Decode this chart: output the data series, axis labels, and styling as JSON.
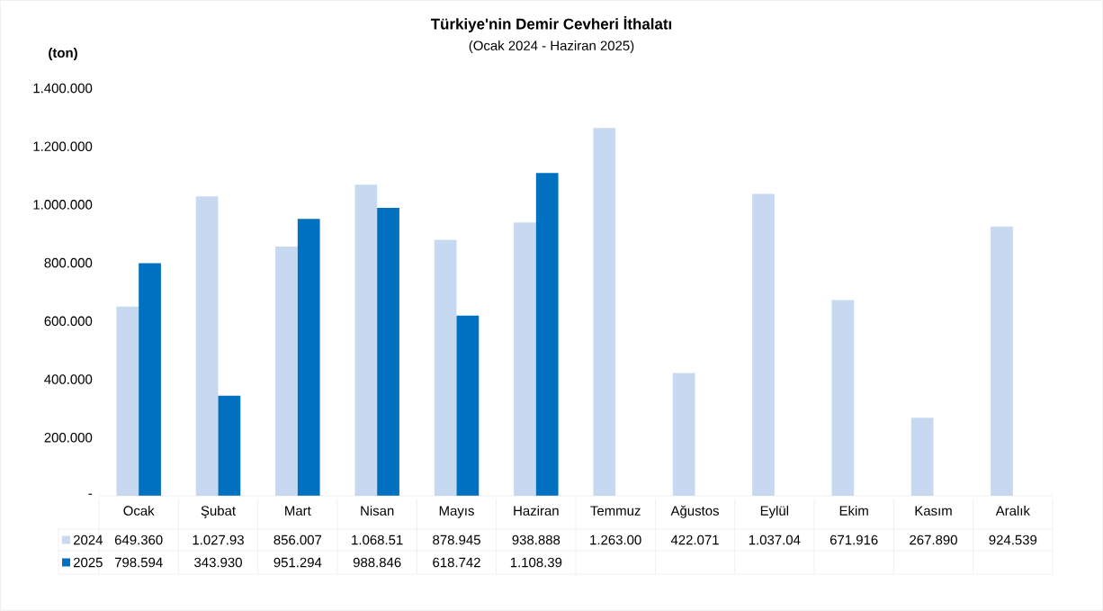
{
  "chart_data": {
    "type": "bar",
    "title": "Türkiye'nin Demir Cevheri İthalatı",
    "subtitle": "(Ocak 2024 - Haziran 2025)",
    "ylabel": "(ton)",
    "categories": [
      "Ocak",
      "Şubat",
      "Mart",
      "Nisan",
      "Mayıs",
      "Haziran",
      "Temmuz",
      "Ağustos",
      "Eylül",
      "Ekim",
      "Kasım",
      "Aralık"
    ],
    "series": [
      {
        "name": "2024",
        "color": "#c6d9f1",
        "values": [
          649360,
          1027930,
          856007,
          1068510,
          878945,
          938888,
          1263000,
          422071,
          1037040,
          671916,
          267890,
          924539
        ],
        "value_labels": [
          "649.360",
          "1.027.93",
          "856.007",
          "1.068.51",
          "878.945",
          "938.888",
          "1.263.00",
          "422.071",
          "1.037.04",
          "671.916",
          "267.890",
          "924.539"
        ]
      },
      {
        "name": "2025",
        "color": "#0070c0",
        "values": [
          798594,
          343930,
          951294,
          988846,
          618742,
          1108390,
          null,
          null,
          null,
          null,
          null,
          null
        ],
        "value_labels": [
          "798.594",
          "343.930",
          "951.294",
          "988.846",
          "618.742",
          "1.108.39",
          null,
          null,
          null,
          null,
          null,
          null
        ]
      }
    ],
    "ylim": [
      0,
      1400000
    ],
    "yticks": [
      {
        "value": 0,
        "label": "-"
      },
      {
        "value": 200000,
        "label": "200.000"
      },
      {
        "value": 400000,
        "label": "400.000"
      },
      {
        "value": 600000,
        "label": "600.000"
      },
      {
        "value": 800000,
        "label": "800.000"
      },
      {
        "value": 1000000,
        "label": "1.000.000"
      },
      {
        "value": 1200000,
        "label": "1.200.000"
      },
      {
        "value": 1400000,
        "label": "1.400.000"
      }
    ],
    "legend": "bottom"
  }
}
